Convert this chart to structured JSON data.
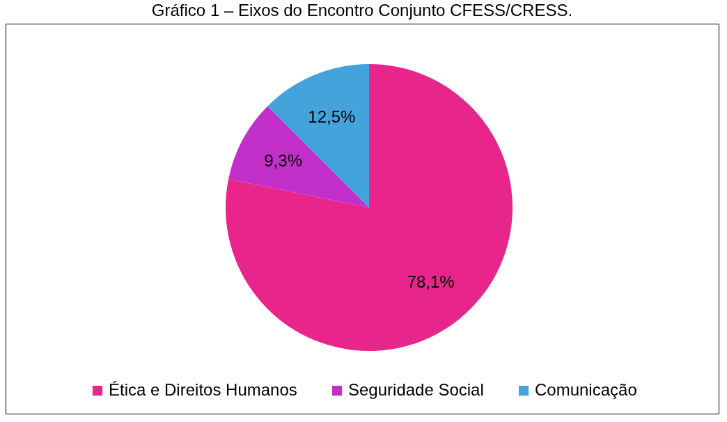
{
  "chart_data": {
    "type": "pie",
    "title": "Gráfico 1 – Eixos do Encontro Conjunto CFESS/CRESS.",
    "categories": [
      "Ética e Direitos Humanos",
      "Seguridade Social",
      "Comunicação"
    ],
    "values": [
      78.1,
      9.3,
      12.5
    ],
    "colors": [
      "#e8258a",
      "#c22fc9",
      "#45a3dc"
    ],
    "value_labels": [
      "78,1%",
      "9,3%",
      "12,5%"
    ],
    "legend": "bottom"
  }
}
